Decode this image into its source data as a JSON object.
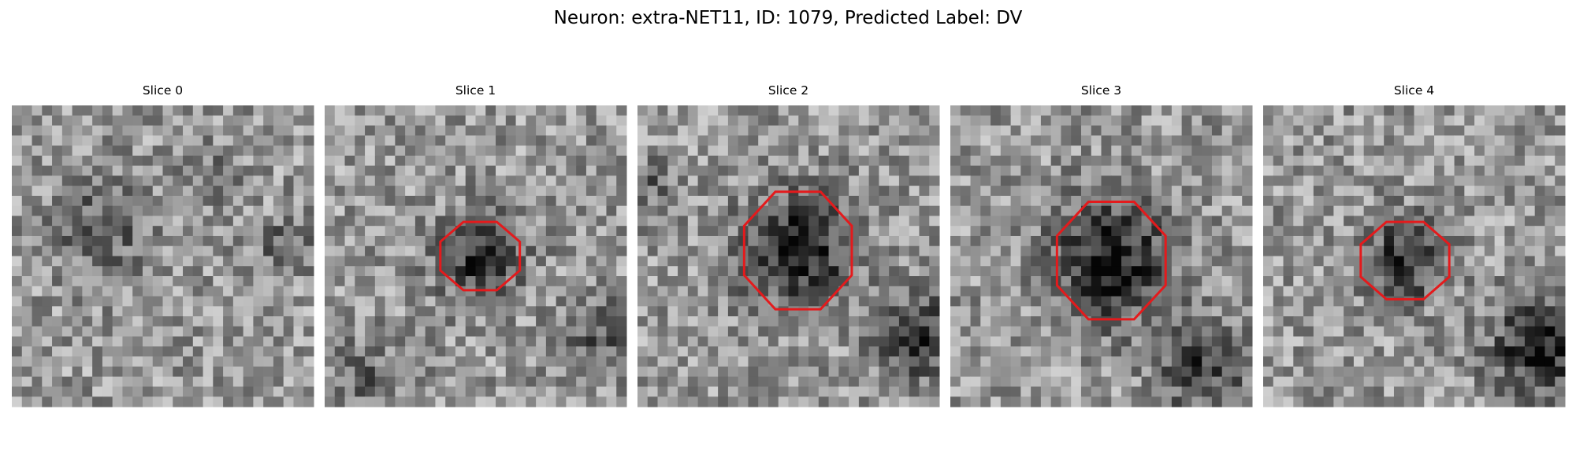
{
  "title": "Neuron: extra-NET11, ID: 1079, Predicted Label: DV",
  "panels": [
    {
      "title": "Slice 0"
    },
    {
      "title": "Slice 1"
    },
    {
      "title": "Slice 2"
    },
    {
      "title": "Slice 3"
    },
    {
      "title": "Slice 4"
    }
  ]
}
